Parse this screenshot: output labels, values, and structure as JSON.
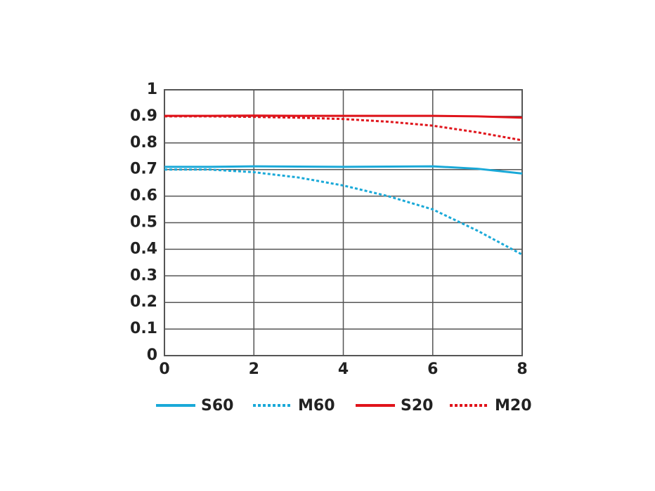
{
  "chart_data": {
    "type": "line",
    "x": [
      0,
      1,
      2,
      3,
      4,
      5,
      6,
      7,
      8
    ],
    "series": [
      {
        "name": "S60",
        "color": "#1aa9d8",
        "line_style": "solid",
        "values": [
          0.71,
          0.71,
          0.712,
          0.711,
          0.71,
          0.711,
          0.712,
          0.703,
          0.685
        ]
      },
      {
        "name": "M60",
        "color": "#1aa9d8",
        "line_style": "dotted",
        "values": [
          0.7,
          0.7,
          0.69,
          0.67,
          0.64,
          0.6,
          0.55,
          0.47,
          0.38
        ]
      },
      {
        "name": "S20",
        "color": "#e0141b",
        "line_style": "solid",
        "values": [
          0.902,
          0.902,
          0.903,
          0.902,
          0.902,
          0.902,
          0.902,
          0.9,
          0.895
        ]
      },
      {
        "name": "M20",
        "color": "#e0141b",
        "line_style": "dotted",
        "values": [
          0.9,
          0.9,
          0.898,
          0.895,
          0.89,
          0.88,
          0.865,
          0.84,
          0.81
        ]
      }
    ],
    "xlim": [
      0,
      8
    ],
    "xticks": [
      0,
      2,
      4,
      6,
      8
    ],
    "ylim": [
      0,
      1
    ],
    "yticks": [
      0,
      0.1,
      0.2,
      0.3,
      0.4,
      0.5,
      0.6,
      0.7,
      0.8,
      0.9,
      1
    ],
    "grid": true,
    "legend": "bottom"
  }
}
